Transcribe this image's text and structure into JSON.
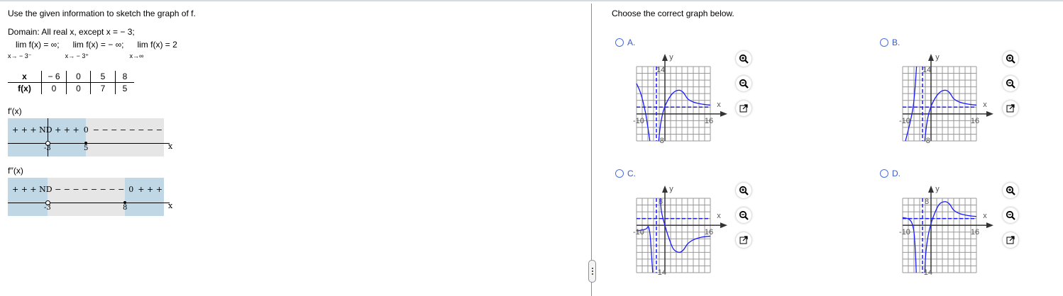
{
  "question": {
    "instruction": "Use the given information to sketch the graph of f.",
    "domain": "Domain: All real x, except x = − 3;",
    "limits": [
      {
        "expr": "lim  f(x) = ∞;",
        "sub": "x→ − 3⁻"
      },
      {
        "expr": "lim  f(x) = − ∞;",
        "sub": "x→ − 3⁺"
      },
      {
        "expr": "lim  f(x) = 2",
        "sub": "x→∞"
      }
    ],
    "table": {
      "x_label": "x",
      "fx_label": "f(x)",
      "x": [
        "− 6",
        "0",
        "5",
        "8"
      ],
      "fx": [
        "0",
        "0",
        "7",
        "5"
      ]
    },
    "fprime": {
      "label": "f′(x)",
      "signs_left": "+ + + ND + + +",
      "zero": "0",
      "signs_right": "− − − − − − − −",
      "tick1": "-3",
      "tick2": "5",
      "axis": "x"
    },
    "fdouble": {
      "label": "f′′(x)",
      "signs_left": "+ + + ND − − − − − − − −",
      "zero": "0",
      "signs_right": "+ + +",
      "tick1": "-3",
      "tick2": "8",
      "axis": "x"
    }
  },
  "answer": {
    "prompt": "Choose the correct graph below.",
    "curve_color": "#1a1aff",
    "options": [
      {
        "label": "A.",
        "xmin": "-10",
        "xmax": "16",
        "ymin": "-8",
        "ymax": "14",
        "yr": [
          -8,
          14
        ],
        "asym_x": -3,
        "asym_y": 2,
        "branches": [
          [
            [
              -10,
              9
            ],
            [
              -8.5,
              6
            ],
            [
              -7,
              1
            ],
            [
              -6,
              -4
            ],
            [
              -5.3,
              -8
            ]
          ],
          [
            [
              -2.2,
              -8
            ],
            [
              -1.5,
              -3
            ],
            [
              -0.5,
              1
            ],
            [
              1,
              4
            ],
            [
              3,
              6.3
            ],
            [
              5,
              7
            ],
            [
              6.5,
              6.3
            ],
            [
              8,
              4.5
            ],
            [
              10,
              3.5
            ],
            [
              13,
              2.9
            ],
            [
              16,
              2.6
            ]
          ]
        ]
      },
      {
        "label": "B.",
        "xmin": "-10",
        "xmax": "16",
        "ymin": "-8",
        "ymax": "14",
        "yr": [
          -8,
          14
        ],
        "asym_x": -3,
        "asym_y": 2,
        "branches": [
          [
            [
              -9,
              -8
            ],
            [
              -7.5,
              -3
            ],
            [
              -6.3,
              2
            ],
            [
              -5.6,
              8
            ],
            [
              -5.1,
              14
            ]
          ],
          [
            [
              -2.2,
              -8
            ],
            [
              -1.5,
              -3
            ],
            [
              -0.5,
              1
            ],
            [
              1,
              4
            ],
            [
              3,
              6.3
            ],
            [
              5,
              7
            ],
            [
              6.5,
              6.3
            ],
            [
              8,
              4.5
            ],
            [
              10,
              3.5
            ],
            [
              13,
              2.9
            ],
            [
              16,
              2.6
            ]
          ]
        ]
      },
      {
        "label": "C.",
        "xmin": "-10",
        "xmax": "16",
        "ymin": "-14",
        "ymax": "8",
        "yr": [
          -14,
          8
        ],
        "asym_x": -3,
        "asym_y": 2,
        "branches": [
          [
            [
              -10,
              -1.6
            ],
            [
              -8,
              -1.4
            ],
            [
              -6.5,
              -1
            ],
            [
              -5.8,
              -0.4
            ],
            [
              -5.2,
              -3
            ],
            [
              -4.7,
              -9
            ],
            [
              -4.3,
              -14
            ]
          ],
          [
            [
              -1.6,
              8
            ],
            [
              -1.2,
              4
            ],
            [
              0,
              0
            ],
            [
              1.5,
              -4
            ],
            [
              3,
              -7
            ],
            [
              5,
              -8
            ],
            [
              6.5,
              -7.3
            ],
            [
              8,
              -5.5
            ],
            [
              10,
              -4.3
            ],
            [
              13,
              -3.5
            ],
            [
              16,
              -3.2
            ]
          ]
        ]
      },
      {
        "label": "D.",
        "xmin": "-10",
        "xmax": "16",
        "ymin": "-14",
        "ymax": "8",
        "yr": [
          -14,
          8
        ],
        "asym_x": -3,
        "asym_y": 2,
        "branches": [
          [
            [
              -10,
              2.3
            ],
            [
              -8,
              1.9
            ],
            [
              -6.8,
              0.8
            ],
            [
              -6,
              -2
            ],
            [
              -5.5,
              -8
            ],
            [
              -5.2,
              -14
            ]
          ],
          [
            [
              -2.2,
              -14
            ],
            [
              -1.8,
              -8
            ],
            [
              -1,
              -3
            ],
            [
              0,
              0.5
            ],
            [
              1.5,
              4
            ],
            [
              3,
              6.3
            ],
            [
              5,
              7
            ],
            [
              6.5,
              6.3
            ],
            [
              8,
              4.5
            ],
            [
              10,
              3.5
            ],
            [
              13,
              2.9
            ],
            [
              16,
              2.6
            ]
          ]
        ]
      }
    ],
    "axis_x": "x",
    "axis_y": "y",
    "icons": [
      "zoom-in-icon",
      "zoom-out-icon",
      "open-new-window-icon"
    ]
  }
}
